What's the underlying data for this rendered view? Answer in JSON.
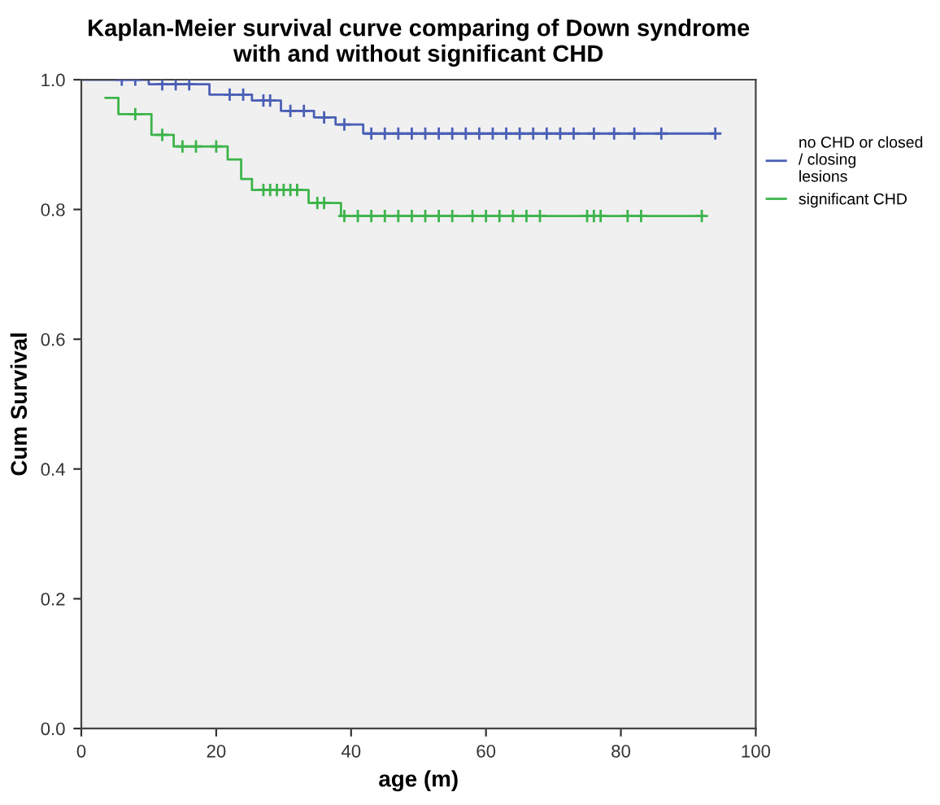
{
  "chart_data": {
    "type": "step",
    "title": "Kaplan-Meier survival curve comparing of Down syndrome\nwith and without significant CHD",
    "xlabel": "age (m)",
    "ylabel": "Cum Survival",
    "xlim": [
      0,
      100
    ],
    "xticks": [
      0,
      20,
      40,
      60,
      80,
      100
    ],
    "ylim": [
      0,
      1
    ],
    "yticks": [
      {
        "value": 0,
        "label": "0.0"
      },
      {
        "value": 0.2,
        "label": "0.2"
      },
      {
        "value": 0.4,
        "label": "0.4"
      },
      {
        "value": 0.6,
        "label": "0.6"
      },
      {
        "value": 0.8,
        "label": "0.8"
      },
      {
        "value": 1,
        "label": "1.0"
      }
    ],
    "grid": false,
    "legend": "right",
    "series": [
      {
        "name": "no CHD or closed / closing lesions",
        "color": "#4a5fb5",
        "x": [
          0,
          10,
          19,
          25.3,
          29.6,
          34.5,
          37.7,
          41.8,
          94
        ],
        "values": [
          1.0,
          0.993,
          0.977,
          0.968,
          0.952,
          0.942,
          0.931,
          0.917,
          0.917
        ]
      },
      {
        "name": "significant CHD",
        "color": "#3cb44a",
        "x": [
          3.6,
          5.5,
          10.4,
          13.7,
          21.7,
          23.7,
          25.3,
          33.7,
          38.5,
          92.3
        ],
        "values": [
          0.972,
          0.947,
          0.915,
          0.897,
          0.877,
          0.847,
          0.83,
          0.81,
          0.79,
          0.79
        ]
      },
      {
        "type": "scatter",
        "marker": "cross",
        "color": "#4a5fb5",
        "x": [
          6,
          8,
          12,
          14,
          16,
          22,
          24,
          27,
          28,
          31,
          33,
          36,
          39,
          43,
          45,
          47,
          49,
          51,
          53,
          55,
          57,
          59,
          61,
          63,
          65,
          67,
          69,
          71,
          73,
          76,
          79,
          82,
          86,
          94
        ],
        "values": [
          1.0,
          1.0,
          0.993,
          0.993,
          0.993,
          0.977,
          0.977,
          0.968,
          0.968,
          0.952,
          0.952,
          0.942,
          0.931,
          0.917,
          0.917,
          0.917,
          0.917,
          0.917,
          0.917,
          0.917,
          0.917,
          0.917,
          0.917,
          0.917,
          0.917,
          0.917,
          0.917,
          0.917,
          0.917,
          0.917,
          0.917,
          0.917,
          0.917,
          0.917
        ]
      },
      {
        "type": "scatter",
        "marker": "cross",
        "color": "#3cb44a",
        "x": [
          8,
          12,
          15,
          17,
          20,
          27,
          28,
          29,
          30,
          31,
          32,
          35,
          36,
          39,
          41,
          43,
          45,
          47,
          49,
          51,
          53,
          55,
          58,
          60,
          62,
          64,
          66,
          68,
          75,
          76,
          77,
          81,
          83,
          92
        ],
        "values": [
          0.947,
          0.915,
          0.897,
          0.897,
          0.897,
          0.83,
          0.83,
          0.83,
          0.83,
          0.83,
          0.83,
          0.81,
          0.81,
          0.79,
          0.79,
          0.79,
          0.79,
          0.79,
          0.79,
          0.79,
          0.79,
          0.79,
          0.79,
          0.79,
          0.79,
          0.79,
          0.79,
          0.79,
          0.79,
          0.79,
          0.79,
          0.79,
          0.79,
          0.79
        ]
      }
    ]
  }
}
